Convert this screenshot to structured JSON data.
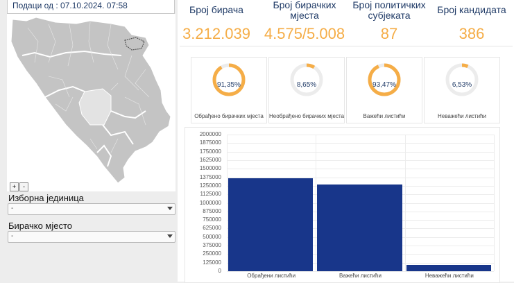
{
  "header": {
    "date_label": "Подаци од : 07.10.2024. 07:58"
  },
  "map": {
    "zoom_in": "+",
    "zoom_out": "-"
  },
  "filters": {
    "unit_label": "Изборна јединица",
    "unit_value": "-",
    "station_label": "Бирачко мјесто",
    "station_value": "-"
  },
  "stats": [
    {
      "title": "Број бирача",
      "value": "3.212.039"
    },
    {
      "title": "Број бирачких мјеста",
      "value": "4.575/5.008"
    },
    {
      "title": "Број политичких субјеката",
      "value": "87"
    },
    {
      "title": "Број кандидата",
      "value": "386"
    }
  ],
  "gauges": [
    {
      "label": "91,35%",
      "fraction": 0.9135,
      "caption": "Обрађено бирачких мјеста"
    },
    {
      "label": "8,65%",
      "fraction": 0.0865,
      "caption": "Необрађено бирачких мјеста"
    },
    {
      "label": "93,47%",
      "fraction": 0.9347,
      "caption": "Важећи листићи"
    },
    {
      "label": "6,53%",
      "fraction": 0.0653,
      "caption": "Неважећи листићи"
    }
  ],
  "colors": {
    "accent": "#f5ad47",
    "track": "#ececec",
    "bar": "#18368a",
    "title": "#1f3a66"
  },
  "chart_data": {
    "type": "bar",
    "categories": [
      "Обрађени листићи",
      "Важећи листићи",
      "Неважећи листићи"
    ],
    "values": [
      1360000,
      1270000,
      90000
    ],
    "ylim": [
      0,
      2000000
    ],
    "yticks": [
      "0",
      "125000",
      "250000",
      "375000",
      "500000",
      "625000",
      "750000",
      "875000",
      "1000000",
      "1125000",
      "1250000",
      "1375000",
      "1500000",
      "1625000",
      "1750000",
      "1875000",
      "2000000"
    ],
    "grid": true,
    "title": "",
    "xlabel": "",
    "ylabel": ""
  }
}
